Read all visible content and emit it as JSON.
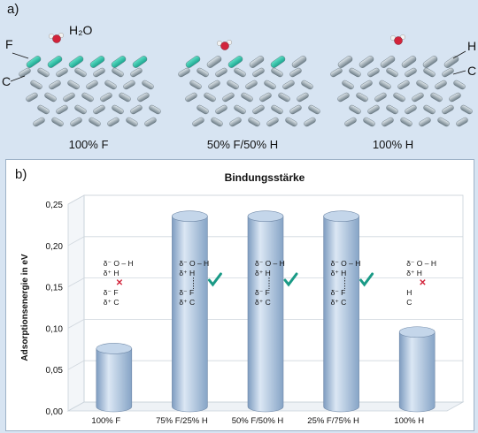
{
  "panel_a": {
    "label": "a)",
    "captions": [
      "100% F",
      "50% F/50% H",
      "100% H"
    ],
    "atom_labels": {
      "F": "F",
      "C_left": "C",
      "H_right": "H",
      "C_right": "C",
      "water": "H₂O"
    },
    "colors": {
      "fluorine": "#1aa58f",
      "carbon": "#93a3ad",
      "oxygen": "#d2233a",
      "hydrogen": "#f2f2f2"
    }
  },
  "panel_b": {
    "label": "b)"
  },
  "chart_data": {
    "type": "bar",
    "title": "Bindungsstärke",
    "xlabel": "",
    "ylabel": "Adsorptionsenergie in eV",
    "categories": [
      "100% F",
      "75% F/25% H",
      "50% F/50% H",
      "25% F/75% H",
      "100% H"
    ],
    "values": [
      0.07,
      0.23,
      0.23,
      0.23,
      0.09
    ],
    "ylim": [
      0,
      0.25
    ],
    "yticks": [
      "0,00",
      "0,05",
      "0,10",
      "0,15",
      "0,20",
      "0,25"
    ],
    "grid": true,
    "bar_style": "3d-cylinder",
    "bar_color": "#a9c2de",
    "annotations": [
      {
        "category": "100% F",
        "bond": "broken",
        "lines": [
          "δ⁻ O – H",
          "δ⁺ H",
          "✕",
          "δ⁻ F",
          "δ⁺ C"
        ]
      },
      {
        "category": "75% F/25% H",
        "bond": "formed",
        "lines": [
          "δ⁻ O – H",
          "δ⁺ H",
          "",
          "δ⁻ F",
          "δ⁺ C"
        ]
      },
      {
        "category": "50% F/50% H",
        "bond": "formed",
        "lines": [
          "δ⁻ O – H",
          "δ⁺ H",
          "",
          "δ⁻ F",
          "δ⁺ C"
        ]
      },
      {
        "category": "25% F/75% H",
        "bond": "formed",
        "lines": [
          "δ⁻ O – H",
          "δ⁺ H",
          "",
          "δ⁻ F",
          "δ⁺ C"
        ]
      },
      {
        "category": "100% H",
        "bond": "broken",
        "lines": [
          "δ⁻ O – H",
          "δ⁺ H",
          "✕",
          "H",
          "C"
        ]
      }
    ],
    "check_color": "#1a9a86",
    "cross_color": "#d2233a"
  }
}
